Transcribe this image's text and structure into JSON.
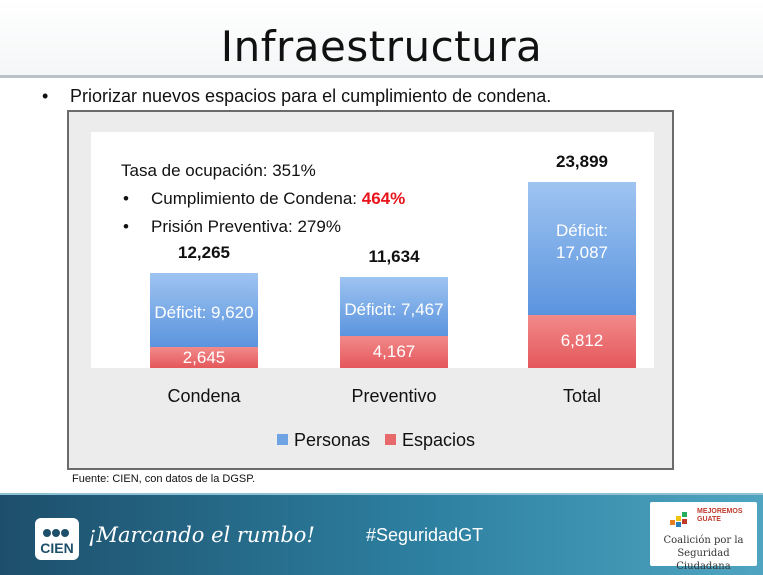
{
  "slide": {
    "title": "Infraestructura",
    "bullet_marker": "•",
    "bullet_text": "Priorizar nuevos espacios para el cumplimiento de condena.",
    "source": "Fuente: CIEN, con datos de la DGSP."
  },
  "info": {
    "ocupacion": "Tasa de ocupación: 351%",
    "condena_label": "Cumplimiento de Condena: ",
    "condena_value": "464%",
    "preventiva": "Prisión Preventiva: 279%"
  },
  "chart_data": {
    "type": "bar",
    "stacked": true,
    "categories": [
      "Condena",
      "Preventivo",
      "Total"
    ],
    "series": [
      {
        "name": "Espacios",
        "color": "#e8696b",
        "values": [
          2645,
          4167,
          6812
        ],
        "labels": [
          "2,645",
          "4,167",
          "6,812"
        ]
      },
      {
        "name": "Personas",
        "color": "#6ea4e3",
        "values": [
          9620,
          7467,
          17087
        ],
        "labels": [
          "Déficit: 9,620",
          "Déficit: 7,467",
          "Déficit: 17,087"
        ]
      }
    ],
    "totals": [
      12265,
      11634,
      23899
    ],
    "total_labels": [
      "12,265",
      "11,634",
      "23,899"
    ],
    "legend": [
      "Personas",
      "Espacios"
    ],
    "legend_position": "bottom",
    "ylim": [
      0,
      23899
    ]
  },
  "footer": {
    "logo_text": "CIEN",
    "slogan": "¡Marcando el rumbo!",
    "hashtag": "#SeguridadGT",
    "brand_small": "MEJOREMOS GUATE",
    "coalition": "Coalición por la Seguridad Ciudadana"
  }
}
